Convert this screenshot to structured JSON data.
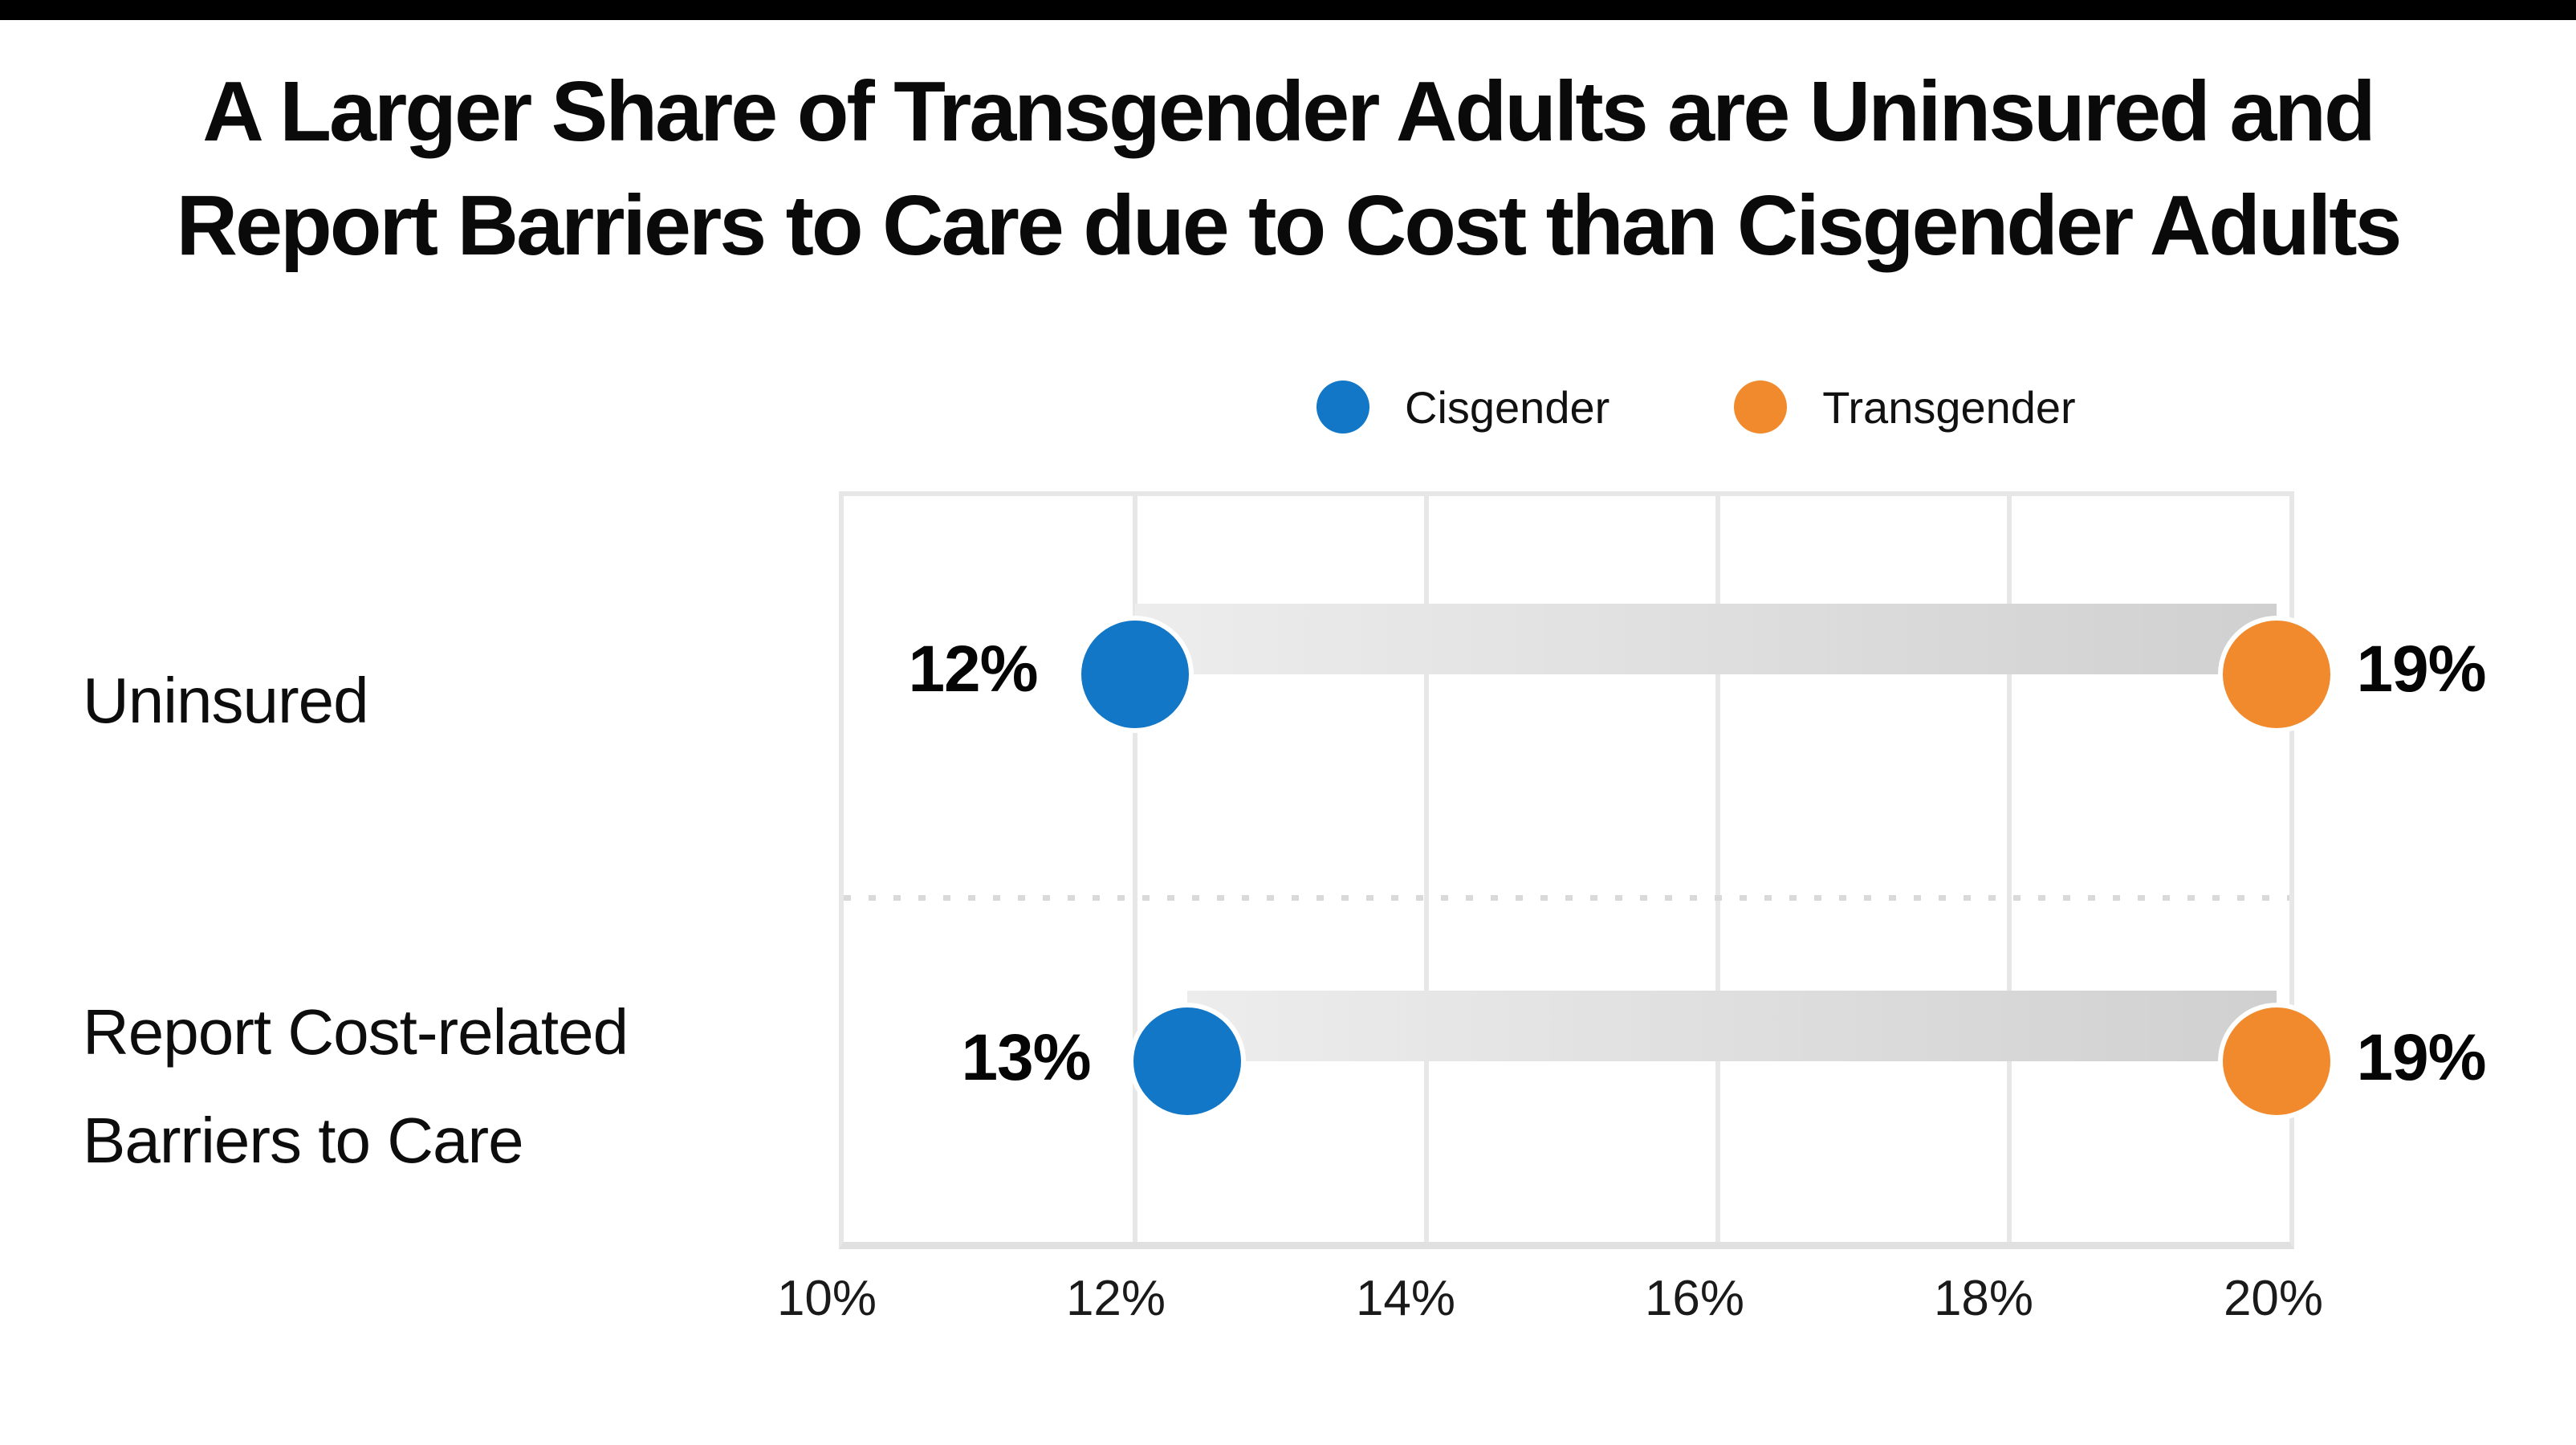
{
  "title": {
    "line1": "A Larger Share of Transgender Adults are Uninsured and",
    "line2": "Report Barriers to Care due to Cost than Cisgender Adults"
  },
  "legend": {
    "items": [
      {
        "label": "Cisgender",
        "color": "#1277c6"
      },
      {
        "label": "Transgender",
        "color": "#f08a2d"
      }
    ]
  },
  "rows": [
    {
      "label_line1": "Uninsured",
      "label_line2": "",
      "cis_value": "12%",
      "trans_value": "19%"
    },
    {
      "label_line1": "Report Cost-related",
      "label_line2": "Barriers to Care",
      "cis_value": "13%",
      "trans_value": "19%"
    }
  ],
  "x_axis": {
    "ticks": [
      "10%",
      "12%",
      "14%",
      "16%",
      "18%",
      "20%"
    ]
  },
  "colors": {
    "cisgender": "#1277c6",
    "transgender": "#f08a2d",
    "grid": "#e7e7e7",
    "connector_light": "#ededed",
    "connector_dark": "#d0d0d0",
    "brand_bar": "#000000"
  },
  "chart_data": {
    "type": "scatter",
    "subtype": "dumbbell-horizontal",
    "title": "A Larger Share of Transgender Adults are Uninsured and Report Barriers to Care due to Cost than Cisgender Adults",
    "categories": [
      "Uninsured",
      "Report Cost-related Barriers to Care"
    ],
    "series": [
      {
        "name": "Cisgender",
        "values": [
          12,
          13
        ],
        "color": "#1277c6"
      },
      {
        "name": "Transgender",
        "values": [
          19,
          19
        ],
        "color": "#f08a2d"
      }
    ],
    "unit": "%",
    "xlabel": "",
    "ylabel": "",
    "xlim": [
      10,
      20
    ],
    "x_ticks": [
      10,
      12,
      14,
      16,
      18,
      20
    ],
    "grid": "vertical",
    "legend_position": "top",
    "row_separator": "dashed"
  }
}
